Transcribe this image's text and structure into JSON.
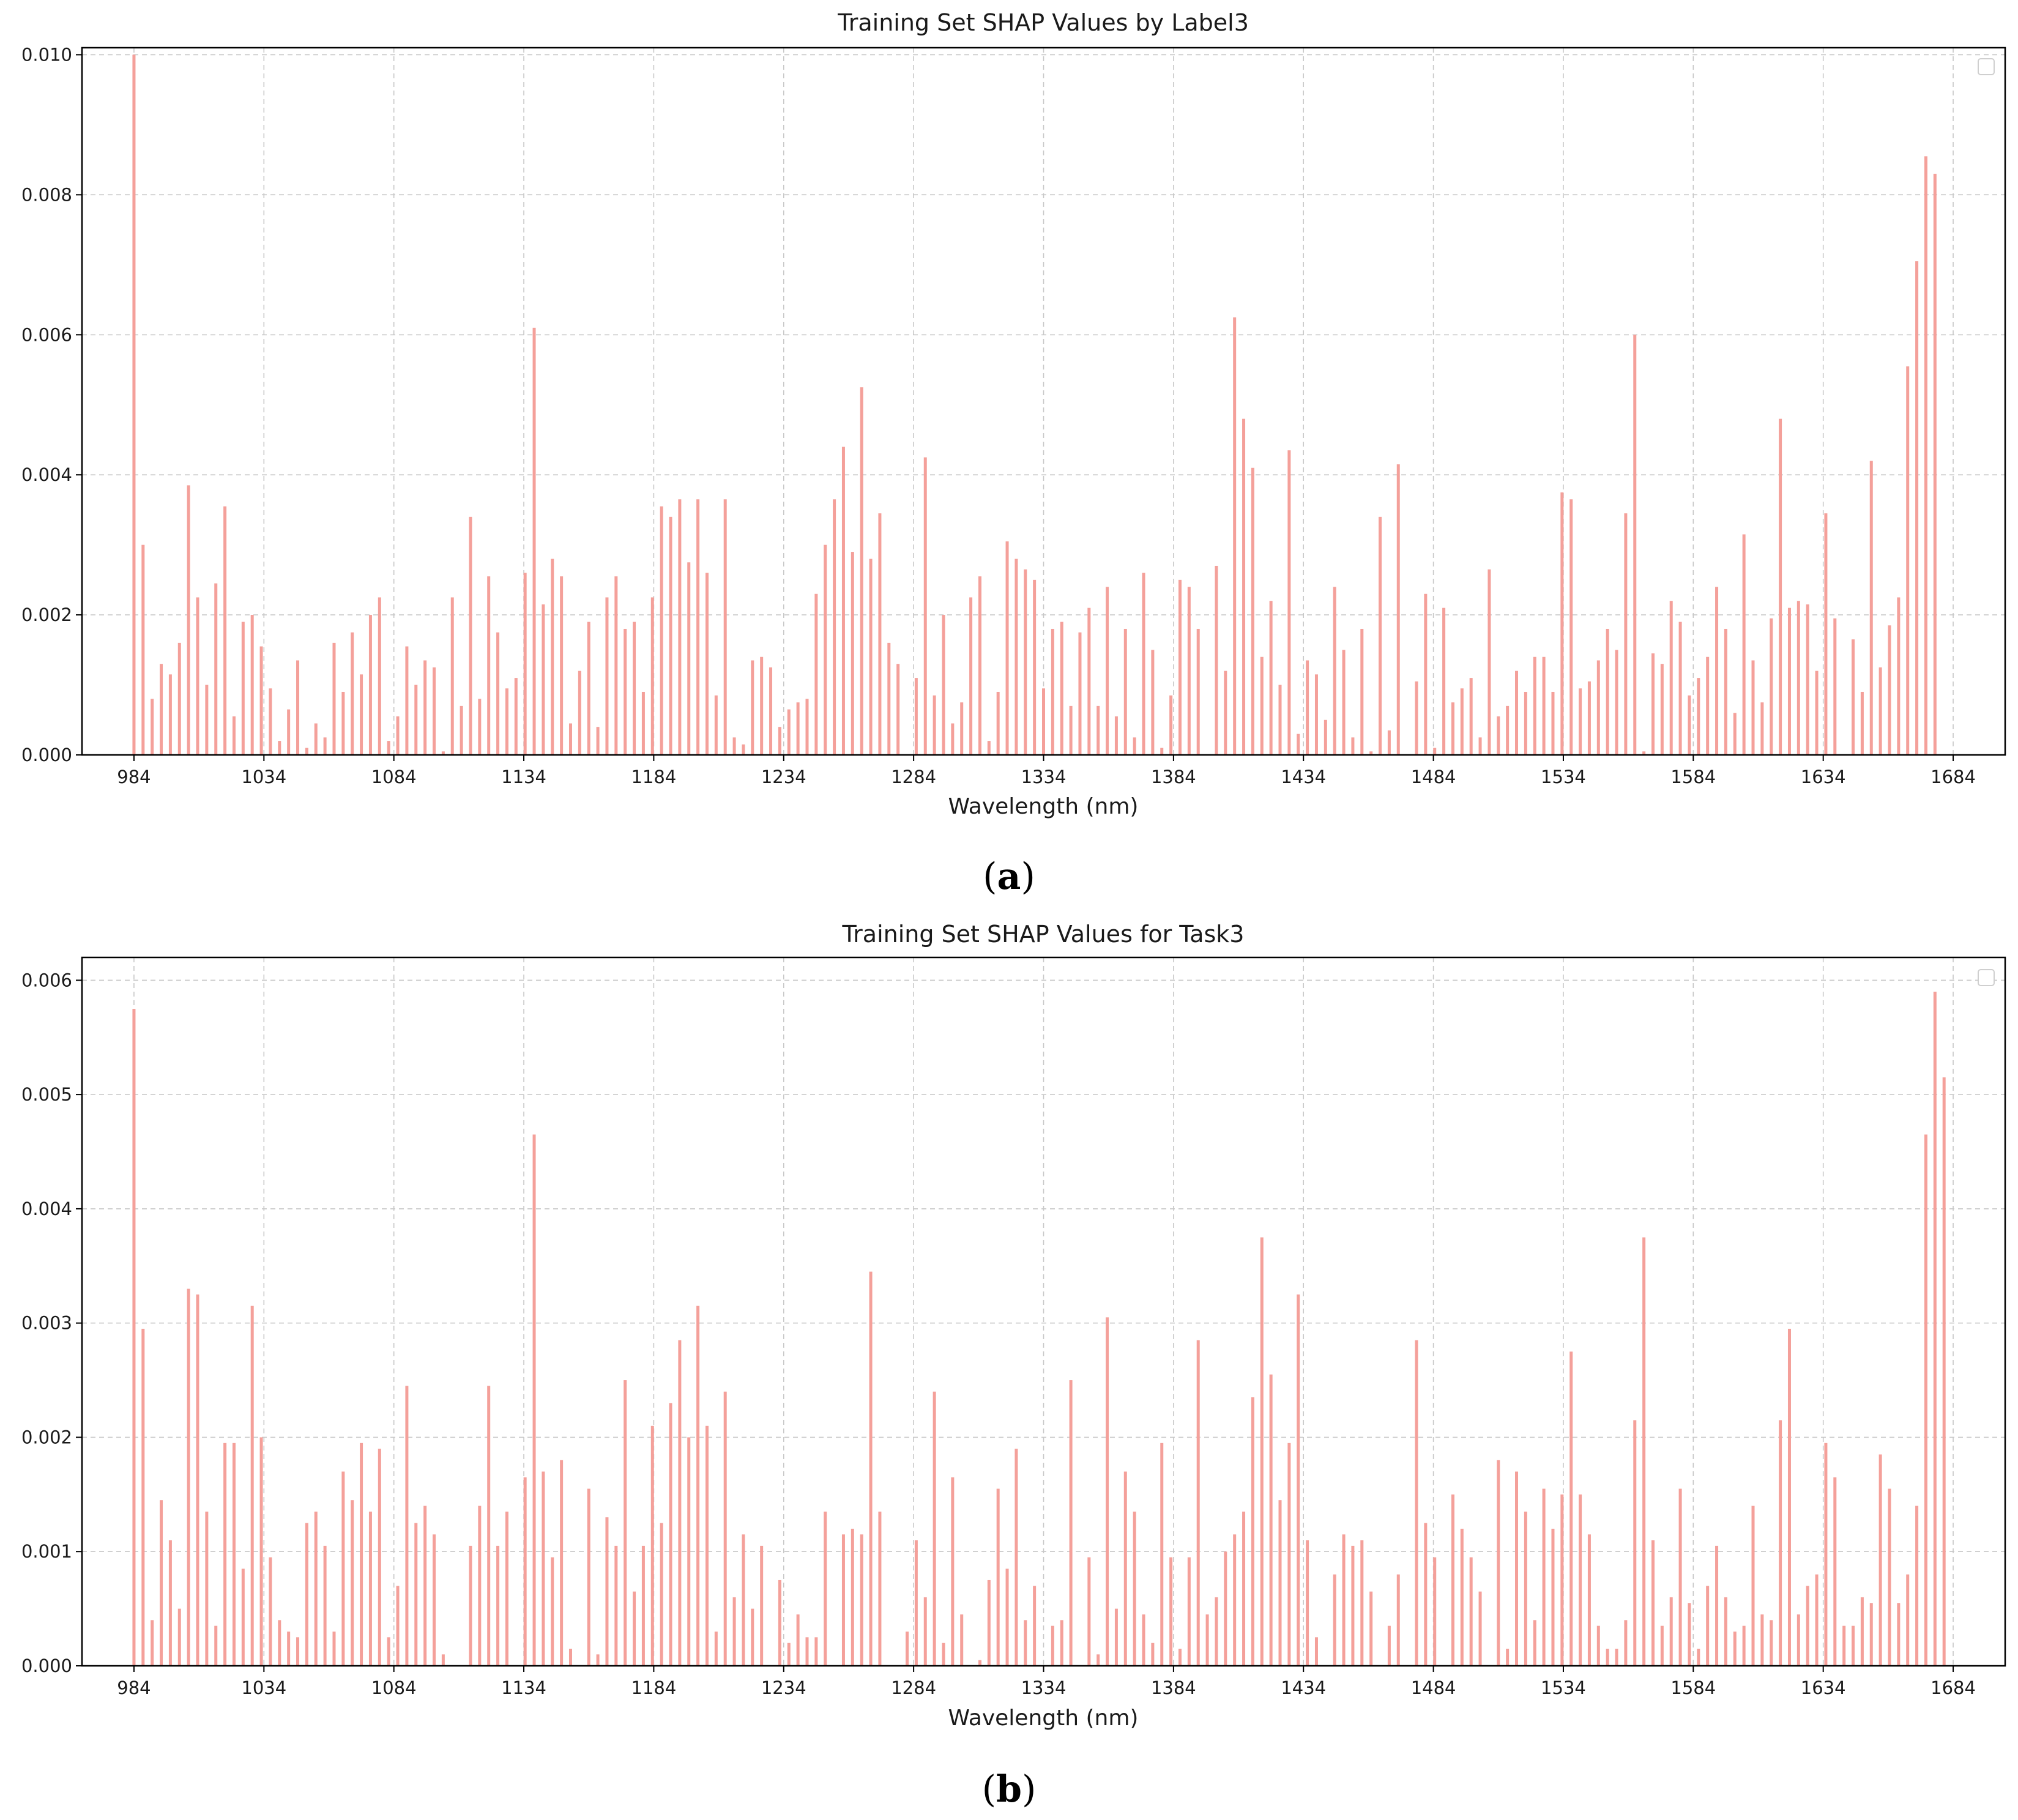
{
  "figure": {
    "captions": [
      "a",
      "b"
    ]
  },
  "chart_data": [
    {
      "type": "bar",
      "title": "Training Set SHAP Values by Label3",
      "xlabel": "Wavelength (nm)",
      "ylabel": "",
      "xlim": [
        964,
        1704
      ],
      "ylim": [
        0,
        0.0101
      ],
      "yticks": [
        0.0,
        0.002,
        0.004,
        0.006,
        0.008,
        0.01
      ],
      "yticklabels": [
        "0.000",
        "0.002",
        "0.004",
        "0.006",
        "0.008",
        "0.010"
      ],
      "xticks": [
        984,
        1034,
        1084,
        1134,
        1184,
        1234,
        1284,
        1334,
        1384,
        1434,
        1484,
        1534,
        1584,
        1634,
        1684
      ],
      "xticklabels": [
        "984",
        "1034",
        "1084",
        "1134",
        "1184",
        "1234",
        "1284",
        "1334",
        "1384",
        "1434",
        "1484",
        "1534",
        "1584",
        "1634",
        "1684"
      ],
      "grid": true,
      "legend": "top-right (empty)",
      "bar_color": "#f4a09a",
      "x_start": 984,
      "x_step": 3.5,
      "values": [
        0.01,
        0.003,
        0.0008,
        0.0013,
        0.00115,
        0.0016,
        0.00385,
        0.00225,
        0.001,
        0.00245,
        0.00355,
        0.00055,
        0.0019,
        0.002,
        0.00155,
        0.00095,
        0.0002,
        0.00065,
        0.00135,
        0.0001,
        0.00045,
        0.00025,
        0.0016,
        0.0009,
        0.00175,
        0.00115,
        0.002,
        0.00225,
        0.0002,
        0.00055,
        0.00155,
        0.001,
        0.00135,
        0.00125,
        5e-05,
        0.00225,
        0.0007,
        0.0034,
        0.0008,
        0.00255,
        0.00175,
        0.00095,
        0.0011,
        0.0026,
        0.0061,
        0.00215,
        0.0028,
        0.00255,
        0.00045,
        0.0012,
        0.0019,
        0.0004,
        0.00225,
        0.00255,
        0.0018,
        0.0019,
        0.0009,
        0.00225,
        0.00355,
        0.0034,
        0.00365,
        0.00275,
        0.00365,
        0.0026,
        0.00085,
        0.00365,
        0.00025,
        0.00015,
        0.00135,
        0.0014,
        0.00125,
        0.0004,
        0.00065,
        0.00075,
        0.0008,
        0.0023,
        0.003,
        0.00365,
        0.0044,
        0.0029,
        0.00525,
        0.0028,
        0.00345,
        0.0016,
        0.0013,
        0.0,
        0.0011,
        0.00425,
        0.00085,
        0.002,
        0.00045,
        0.00075,
        0.00225,
        0.00255,
        0.0002,
        0.0009,
        0.00305,
        0.0028,
        0.00265,
        0.0025,
        0.00095,
        0.0018,
        0.0019,
        0.0007,
        0.00175,
        0.0021,
        0.0007,
        0.0024,
        0.00055,
        0.0018,
        0.00025,
        0.0026,
        0.0015,
        0.0001,
        0.00085,
        0.0025,
        0.0024,
        0.0018,
        0.0,
        0.0027,
        0.0012,
        0.00625,
        0.0048,
        0.0041,
        0.0014,
        0.0022,
        0.001,
        0.00435,
        0.0003,
        0.00135,
        0.00115,
        0.0005,
        0.0024,
        0.0015,
        0.00025,
        0.0018,
        5e-05,
        0.0034,
        0.00035,
        0.00415,
        0.0,
        0.00105,
        0.0023,
        0.0001,
        0.0021,
        0.00075,
        0.00095,
        0.0011,
        0.00025,
        0.00265,
        0.00055,
        0.0007,
        0.0012,
        0.0009,
        0.0014,
        0.0014,
        0.0009,
        0.00375,
        0.00365,
        0.00095,
        0.00105,
        0.00135,
        0.0018,
        0.0015,
        0.00345,
        0.006,
        5e-05,
        0.00145,
        0.0013,
        0.0022,
        0.0019,
        0.00085,
        0.0011,
        0.0014,
        0.0024,
        0.0018,
        0.0006,
        0.00315,
        0.00135,
        0.00075,
        0.00195,
        0.0048,
        0.0021,
        0.0022,
        0.00215,
        0.0012,
        0.00345,
        0.00195,
        0.0,
        0.00165,
        0.0009,
        0.0042,
        0.00125,
        0.00185,
        0.00225,
        0.00555,
        0.00705,
        0.00855,
        0.0083
      ]
    },
    {
      "type": "bar",
      "title": "Training Set SHAP Values for Task3",
      "xlabel": "Wavelength (nm)",
      "ylabel": "",
      "xlim": [
        964,
        1704
      ],
      "ylim": [
        0,
        0.0062
      ],
      "yticks": [
        0.0,
        0.001,
        0.002,
        0.003,
        0.004,
        0.005,
        0.006
      ],
      "yticklabels": [
        "0.000",
        "0.001",
        "0.002",
        "0.003",
        "0.004",
        "0.005",
        "0.006"
      ],
      "xticks": [
        984,
        1034,
        1084,
        1134,
        1184,
        1234,
        1284,
        1334,
        1384,
        1434,
        1484,
        1534,
        1584,
        1634,
        1684
      ],
      "xticklabels": [
        "984",
        "1034",
        "1084",
        "1134",
        "1184",
        "1234",
        "1284",
        "1334",
        "1384",
        "1434",
        "1484",
        "1534",
        "1584",
        "1634",
        "1684"
      ],
      "grid": true,
      "legend": "top-right (empty)",
      "bar_color": "#f4a09a",
      "x_start": 984,
      "x_step": 3.5,
      "values": [
        0.00575,
        0.00295,
        0.0004,
        0.00145,
        0.0011,
        0.0005,
        0.0033,
        0.00325,
        0.00135,
        0.00035,
        0.00195,
        0.00195,
        0.00085,
        0.00315,
        0.002,
        0.00095,
        0.0004,
        0.0003,
        0.00025,
        0.00125,
        0.00135,
        0.00105,
        0.0003,
        0.0017,
        0.00145,
        0.00195,
        0.00135,
        0.0019,
        0.00025,
        0.0007,
        0.00245,
        0.00125,
        0.0014,
        0.00115,
        0.0001,
        0.0,
        0.0,
        0.00105,
        0.0014,
        0.00245,
        0.00105,
        0.00135,
        0.0,
        0.00165,
        0.00465,
        0.0017,
        0.00095,
        0.0018,
        0.00015,
        0.0,
        0.00155,
        0.0001,
        0.0013,
        0.00105,
        0.0025,
        0.00065,
        0.00105,
        0.0021,
        0.00125,
        0.0023,
        0.00285,
        0.002,
        0.00315,
        0.0021,
        0.0003,
        0.0024,
        0.0006,
        0.00115,
        0.0005,
        0.00105,
        0.0,
        0.00075,
        0.0002,
        0.00045,
        0.00025,
        0.00025,
        0.00135,
        0.0,
        0.00115,
        0.0012,
        0.00115,
        0.00345,
        0.00135,
        0.0,
        0.0,
        0.0003,
        0.0011,
        0.0006,
        0.0024,
        0.0002,
        0.00165,
        0.00045,
        0.0,
        5e-05,
        0.00075,
        0.00155,
        0.00085,
        0.0019,
        0.0004,
        0.0007,
        0.0,
        0.00035,
        0.0004,
        0.0025,
        0.0,
        0.00095,
        0.0001,
        0.00305,
        0.0005,
        0.0017,
        0.00135,
        0.00045,
        0.0002,
        0.00195,
        0.00095,
        0.00015,
        0.00095,
        0.00285,
        0.00045,
        0.0006,
        0.001,
        0.00115,
        0.00135,
        0.00235,
        0.00375,
        0.00255,
        0.00145,
        0.00195,
        0.00325,
        0.0011,
        0.00025,
        0.0,
        0.0008,
        0.00115,
        0.00105,
        0.0011,
        0.00065,
        0.0,
        0.00035,
        0.0008,
        0.0,
        0.00285,
        0.00125,
        0.00095,
        0.0,
        0.0015,
        0.0012,
        0.00095,
        0.00065,
        0.0,
        0.0018,
        0.00015,
        0.0017,
        0.00135,
        0.0004,
        0.00155,
        0.0012,
        0.0015,
        0.00275,
        0.0015,
        0.00115,
        0.00035,
        0.00015,
        0.00015,
        0.0004,
        0.00215,
        0.00375,
        0.0011,
        0.00035,
        0.0006,
        0.00155,
        0.00055,
        0.00015,
        0.0007,
        0.00105,
        0.0006,
        0.0003,
        0.00035,
        0.0014,
        0.00045,
        0.0004,
        0.00215,
        0.00295,
        0.00045,
        0.0007,
        0.0008,
        0.00195,
        0.00165,
        0.00035,
        0.00035,
        0.0006,
        0.00055,
        0.00185,
        0.00155,
        0.00055,
        0.0008,
        0.0014,
        0.00465,
        0.0059,
        0.00515
      ]
    }
  ]
}
